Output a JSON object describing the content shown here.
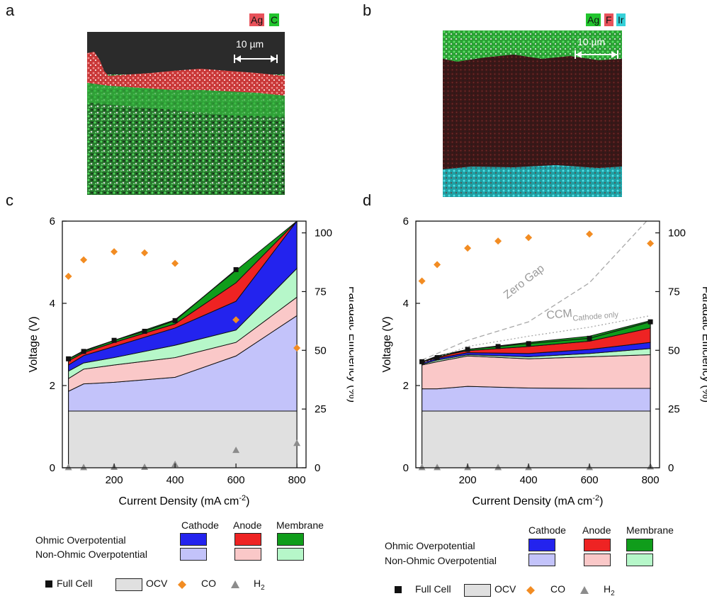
{
  "panels": {
    "a": {
      "letter": "a",
      "elements": [
        {
          "label": "Ag",
          "color": "#e8525a"
        },
        {
          "label": "C",
          "color": "#22c52e"
        }
      ],
      "scale_bar": "10 µm"
    },
    "b": {
      "letter": "b",
      "elements": [
        {
          "label": "Ag",
          "color": "#22c52e"
        },
        {
          "label": "F",
          "color": "#e8525a"
        },
        {
          "label": "Ir",
          "color": "#35d0d8"
        }
      ],
      "scale_bar": "10 µm"
    },
    "c": {
      "letter": "c"
    },
    "d": {
      "letter": "d"
    }
  },
  "colors": {
    "ocv": "#e0e0e0",
    "cathode_nonohmic": "#c3c3fa",
    "anode_nonohmic": "#fac8c8",
    "membrane_nonohmic": "#b6f7c9",
    "cathode_ohmic": "#2323ee",
    "anode_ohmic": "#ee2323",
    "membrane_ohmic": "#109d1b",
    "co": "#f28c22",
    "h2": "#8c8c8c"
  },
  "chart_data": [
    {
      "type": "area",
      "panel": "c",
      "xlabel": "Current Density (mA cm-2)",
      "ylabel": "Voltage (V)",
      "y2label": "Faradaic Efficiency (%)",
      "xlim": [
        30,
        830
      ],
      "ylim": [
        0,
        6
      ],
      "y2lim": [
        0,
        105
      ],
      "xticks": [
        200,
        400,
        600,
        800
      ],
      "yticks": [
        0,
        2,
        4,
        6
      ],
      "y2ticks": [
        0,
        25,
        50,
        75,
        100
      ],
      "x": [
        50,
        100,
        200,
        400,
        600,
        800
      ],
      "stack_tops": {
        "ocv": [
          1.38,
          1.38,
          1.38,
          1.38,
          1.38,
          1.38
        ],
        "cathode_nonohmic": [
          1.86,
          2.04,
          2.08,
          2.2,
          2.72,
          3.7
        ],
        "anode_nonohmic": [
          2.17,
          2.4,
          2.5,
          2.68,
          3.05,
          4.15
        ],
        "membrane_nonohmic": [
          2.35,
          2.55,
          2.68,
          2.98,
          3.35,
          4.85
        ],
        "cathode_ohmic": [
          2.5,
          2.73,
          2.95,
          3.4,
          4.05,
          6.0
        ],
        "anode_ohmic": [
          2.6,
          2.8,
          3.05,
          3.5,
          4.5,
          6.0
        ],
        "membrane_ohmic": [
          2.65,
          2.85,
          3.1,
          3.6,
          4.8,
          6.0
        ]
      },
      "series": [
        {
          "name": "Full Cell",
          "x": [
            50,
            100,
            200,
            300,
            400,
            600
          ],
          "values": [
            2.65,
            2.83,
            3.1,
            3.32,
            3.58,
            4.82
          ]
        },
        {
          "name": "CO",
          "x": [
            50,
            100,
            200,
            300,
            400,
            600,
            800
          ],
          "values": [
            81.5,
            88.5,
            92,
            91.5,
            87,
            63,
            51
          ]
        },
        {
          "name": "H2",
          "x": [
            50,
            100,
            200,
            300,
            400,
            600,
            800
          ],
          "values": [
            0.2,
            0.2,
            0.3,
            0.3,
            1.5,
            7.5,
            10.5
          ]
        }
      ],
      "annotations": []
    },
    {
      "type": "area",
      "panel": "d",
      "xlabel": "Current Density (mA cm-2)",
      "ylabel": "Voltage (V)",
      "y2label": "Faradaic Efficiency (%)",
      "xlim": [
        30,
        830
      ],
      "ylim": [
        0,
        6
      ],
      "y2lim": [
        0,
        105
      ],
      "xticks": [
        200,
        400,
        600,
        800
      ],
      "yticks": [
        0,
        2,
        4,
        6
      ],
      "y2ticks": [
        0,
        25,
        50,
        75,
        100
      ],
      "x": [
        50,
        100,
        200,
        400,
        600,
        800
      ],
      "stack_tops": {
        "ocv": [
          1.38,
          1.38,
          1.38,
          1.38,
          1.38,
          1.38
        ],
        "cathode_nonohmic": [
          1.92,
          1.92,
          1.98,
          1.94,
          1.93,
          1.93
        ],
        "anode_nonohmic": [
          2.5,
          2.58,
          2.72,
          2.65,
          2.7,
          2.75
        ],
        "membrane_nonohmic": [
          2.52,
          2.62,
          2.75,
          2.7,
          2.78,
          2.9
        ],
        "cathode_ohmic": [
          2.55,
          2.66,
          2.8,
          2.78,
          2.88,
          3.05
        ],
        "anode_ohmic": [
          2.57,
          2.7,
          2.85,
          2.95,
          3.08,
          3.4
        ],
        "membrane_ohmic": [
          2.58,
          2.72,
          2.88,
          3.05,
          3.2,
          3.58
        ]
      },
      "series": [
        {
          "name": "Full Cell",
          "x": [
            50,
            100,
            200,
            300,
            400,
            600,
            800
          ],
          "values": [
            2.58,
            2.68,
            2.88,
            2.95,
            3.02,
            3.15,
            3.55
          ]
        },
        {
          "name": "CO",
          "x": [
            50,
            100,
            200,
            300,
            400,
            600,
            800
          ],
          "values": [
            79.5,
            86.5,
            93.5,
            96.5,
            98,
            99.5,
            95.5
          ]
        },
        {
          "name": "H2",
          "x": [
            50,
            100,
            200,
            300,
            400,
            600,
            800
          ],
          "values": [
            0.2,
            0.2,
            0.2,
            0.2,
            0.2,
            0.2,
            0.5
          ]
        },
        {
          "name": "Zero Gap",
          "style": "dashed",
          "x": [
            50,
            200,
            400,
            600,
            700,
            800
          ],
          "values": [
            2.62,
            3.1,
            3.55,
            4.5,
            5.3,
            6.1
          ]
        },
        {
          "name": "CCM Cathode only",
          "style": "dotted",
          "x": [
            50,
            200,
            400,
            600,
            800
          ],
          "values": [
            2.55,
            2.95,
            3.2,
            3.42,
            3.7
          ]
        }
      ],
      "annotations": [
        {
          "text": "Zero Gap"
        },
        {
          "text": "CCM",
          "subscript": "Cathode only"
        }
      ]
    }
  ],
  "legend": {
    "headers": [
      "Cathode",
      "Anode",
      "Membrane"
    ],
    "rows": [
      "Ohmic Overpotential",
      "Non-Ohmic Overpotential"
    ],
    "markers": [
      "Full Cell",
      "OCV",
      "CO",
      "H"
    ],
    "h2_sub": "2"
  }
}
